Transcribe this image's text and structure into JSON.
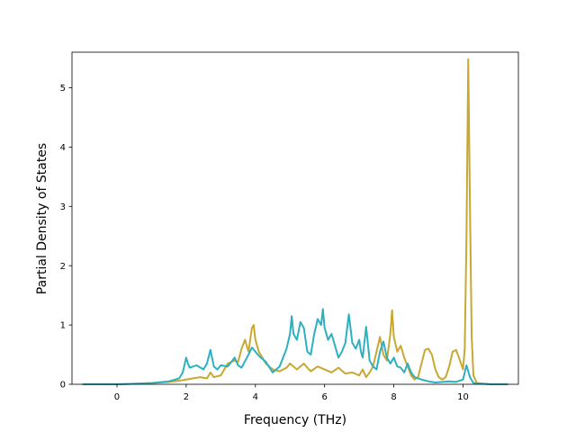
{
  "chart_data": {
    "type": "line",
    "title": "",
    "xlabel": "Frequency (THz)",
    "ylabel": "Partial Density of States",
    "xlim": [
      -1.3,
      11.6
    ],
    "ylim": [
      0,
      5.6
    ],
    "xticks": [
      0,
      2,
      4,
      6,
      8,
      10
    ],
    "yticks": [
      0,
      1,
      2,
      3,
      4,
      5
    ],
    "grid": false,
    "legend": "none",
    "series": [
      {
        "color": "#c8a832",
        "points": [
          [
            -1.0,
            0
          ],
          [
            0.0,
            0
          ],
          [
            0.5,
            0.01
          ],
          [
            1.0,
            0.02
          ],
          [
            1.5,
            0.04
          ],
          [
            1.8,
            0.06
          ],
          [
            2.0,
            0.08
          ],
          [
            2.2,
            0.1
          ],
          [
            2.4,
            0.12
          ],
          [
            2.6,
            0.1
          ],
          [
            2.7,
            0.2
          ],
          [
            2.8,
            0.12
          ],
          [
            3.0,
            0.15
          ],
          [
            3.2,
            0.35
          ],
          [
            3.4,
            0.4
          ],
          [
            3.5,
            0.38
          ],
          [
            3.6,
            0.6
          ],
          [
            3.7,
            0.75
          ],
          [
            3.8,
            0.55
          ],
          [
            3.9,
            0.95
          ],
          [
            3.95,
            1.0
          ],
          [
            4.0,
            0.75
          ],
          [
            4.1,
            0.55
          ],
          [
            4.3,
            0.35
          ],
          [
            4.5,
            0.25
          ],
          [
            4.7,
            0.22
          ],
          [
            4.9,
            0.28
          ],
          [
            5.0,
            0.35
          ],
          [
            5.1,
            0.3
          ],
          [
            5.2,
            0.25
          ],
          [
            5.4,
            0.35
          ],
          [
            5.5,
            0.28
          ],
          [
            5.6,
            0.22
          ],
          [
            5.8,
            0.3
          ],
          [
            6.0,
            0.25
          ],
          [
            6.2,
            0.2
          ],
          [
            6.4,
            0.28
          ],
          [
            6.6,
            0.18
          ],
          [
            6.8,
            0.2
          ],
          [
            7.0,
            0.15
          ],
          [
            7.1,
            0.25
          ],
          [
            7.2,
            0.12
          ],
          [
            7.3,
            0.2
          ],
          [
            7.4,
            0.3
          ],
          [
            7.5,
            0.55
          ],
          [
            7.6,
            0.8
          ],
          [
            7.7,
            0.5
          ],
          [
            7.8,
            0.4
          ],
          [
            7.9,
            0.85
          ],
          [
            7.95,
            1.25
          ],
          [
            8.0,
            0.8
          ],
          [
            8.1,
            0.55
          ],
          [
            8.2,
            0.65
          ],
          [
            8.3,
            0.45
          ],
          [
            8.4,
            0.3
          ],
          [
            8.5,
            0.15
          ],
          [
            8.6,
            0.08
          ],
          [
            8.7,
            0.12
          ],
          [
            8.8,
            0.35
          ],
          [
            8.9,
            0.58
          ],
          [
            9.0,
            0.6
          ],
          [
            9.1,
            0.5
          ],
          [
            9.2,
            0.25
          ],
          [
            9.3,
            0.12
          ],
          [
            9.4,
            0.08
          ],
          [
            9.5,
            0.12
          ],
          [
            9.6,
            0.3
          ],
          [
            9.7,
            0.55
          ],
          [
            9.8,
            0.58
          ],
          [
            9.9,
            0.42
          ],
          [
            10.0,
            0.25
          ],
          [
            10.05,
            0.6
          ],
          [
            10.1,
            2.5
          ],
          [
            10.15,
            5.48
          ],
          [
            10.2,
            3.0
          ],
          [
            10.25,
            0.8
          ],
          [
            10.3,
            0.15
          ],
          [
            10.4,
            0.02
          ],
          [
            10.8,
            0
          ],
          [
            11.3,
            0
          ]
        ]
      },
      {
        "color": "#2eb0c0",
        "points": [
          [
            -1.0,
            0
          ],
          [
            0.0,
            0
          ],
          [
            0.5,
            0.01
          ],
          [
            1.0,
            0.02
          ],
          [
            1.5,
            0.05
          ],
          [
            1.8,
            0.1
          ],
          [
            1.9,
            0.2
          ],
          [
            2.0,
            0.45
          ],
          [
            2.05,
            0.35
          ],
          [
            2.1,
            0.28
          ],
          [
            2.3,
            0.32
          ],
          [
            2.5,
            0.25
          ],
          [
            2.6,
            0.35
          ],
          [
            2.7,
            0.58
          ],
          [
            2.8,
            0.3
          ],
          [
            2.9,
            0.25
          ],
          [
            3.0,
            0.32
          ],
          [
            3.2,
            0.3
          ],
          [
            3.4,
            0.45
          ],
          [
            3.5,
            0.32
          ],
          [
            3.6,
            0.28
          ],
          [
            3.8,
            0.5
          ],
          [
            3.9,
            0.62
          ],
          [
            4.0,
            0.55
          ],
          [
            4.1,
            0.48
          ],
          [
            4.3,
            0.38
          ],
          [
            4.5,
            0.2
          ],
          [
            4.6,
            0.25
          ],
          [
            4.7,
            0.3
          ],
          [
            4.8,
            0.45
          ],
          [
            4.9,
            0.6
          ],
          [
            5.0,
            0.85
          ],
          [
            5.05,
            1.15
          ],
          [
            5.1,
            0.85
          ],
          [
            5.2,
            0.75
          ],
          [
            5.3,
            1.05
          ],
          [
            5.4,
            0.95
          ],
          [
            5.5,
            0.55
          ],
          [
            5.6,
            0.5
          ],
          [
            5.7,
            0.85
          ],
          [
            5.8,
            1.1
          ],
          [
            5.9,
            1.0
          ],
          [
            5.95,
            1.27
          ],
          [
            6.0,
            0.95
          ],
          [
            6.1,
            0.75
          ],
          [
            6.2,
            0.85
          ],
          [
            6.3,
            0.65
          ],
          [
            6.4,
            0.45
          ],
          [
            6.5,
            0.55
          ],
          [
            6.6,
            0.7
          ],
          [
            6.7,
            1.18
          ],
          [
            6.8,
            0.7
          ],
          [
            6.9,
            0.6
          ],
          [
            7.0,
            0.75
          ],
          [
            7.05,
            0.55
          ],
          [
            7.1,
            0.45
          ],
          [
            7.2,
            0.97
          ],
          [
            7.3,
            0.4
          ],
          [
            7.4,
            0.3
          ],
          [
            7.5,
            0.25
          ],
          [
            7.6,
            0.55
          ],
          [
            7.7,
            0.72
          ],
          [
            7.8,
            0.45
          ],
          [
            7.9,
            0.35
          ],
          [
            8.0,
            0.45
          ],
          [
            8.1,
            0.3
          ],
          [
            8.2,
            0.28
          ],
          [
            8.3,
            0.2
          ],
          [
            8.4,
            0.35
          ],
          [
            8.5,
            0.2
          ],
          [
            8.6,
            0.12
          ],
          [
            8.8,
            0.08
          ],
          [
            9.0,
            0.05
          ],
          [
            9.2,
            0.03
          ],
          [
            9.4,
            0.04
          ],
          [
            9.6,
            0.05
          ],
          [
            9.8,
            0.04
          ],
          [
            10.0,
            0.08
          ],
          [
            10.1,
            0.32
          ],
          [
            10.2,
            0.12
          ],
          [
            10.3,
            0.02
          ],
          [
            10.8,
            0
          ],
          [
            11.3,
            0
          ]
        ]
      }
    ]
  }
}
